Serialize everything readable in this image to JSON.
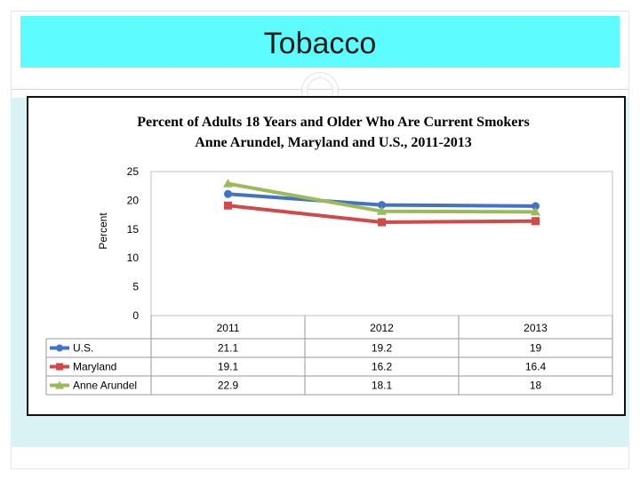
{
  "slide": {
    "title": "Tobacco"
  },
  "colors": {
    "title_bar": "#5dfcff",
    "band": "#d9f3f4",
    "us": "#4472c4",
    "maryland": "#d04a4a",
    "anne_arundel": "#9bbb59"
  },
  "chart_data": {
    "type": "line",
    "title": "Percent of Adults 18 Years and Older Who Are Current Smokers",
    "subtitle": "Anne Arundel, Maryland and U.S., 2011-2013",
    "ylabel": "Percent",
    "ylim": [
      0,
      25
    ],
    "yticks": [
      0,
      5,
      10,
      15,
      20,
      25
    ],
    "categories": [
      "2011",
      "2012",
      "2013"
    ],
    "series": [
      {
        "name": "U.S.",
        "color": "#4472c4",
        "values": [
          21.1,
          19.2,
          19
        ]
      },
      {
        "name": "Maryland",
        "color": "#d04a4a",
        "values": [
          19.1,
          16.2,
          16.4
        ]
      },
      {
        "name": "Anne Arundel",
        "color": "#9bbb59",
        "values": [
          22.9,
          18.1,
          18
        ]
      }
    ],
    "table_values": [
      [
        "21.1",
        "19.2",
        "19"
      ],
      [
        "19.1",
        "16.2",
        "16.4"
      ],
      [
        "22.9",
        "18.1",
        "18"
      ]
    ]
  }
}
